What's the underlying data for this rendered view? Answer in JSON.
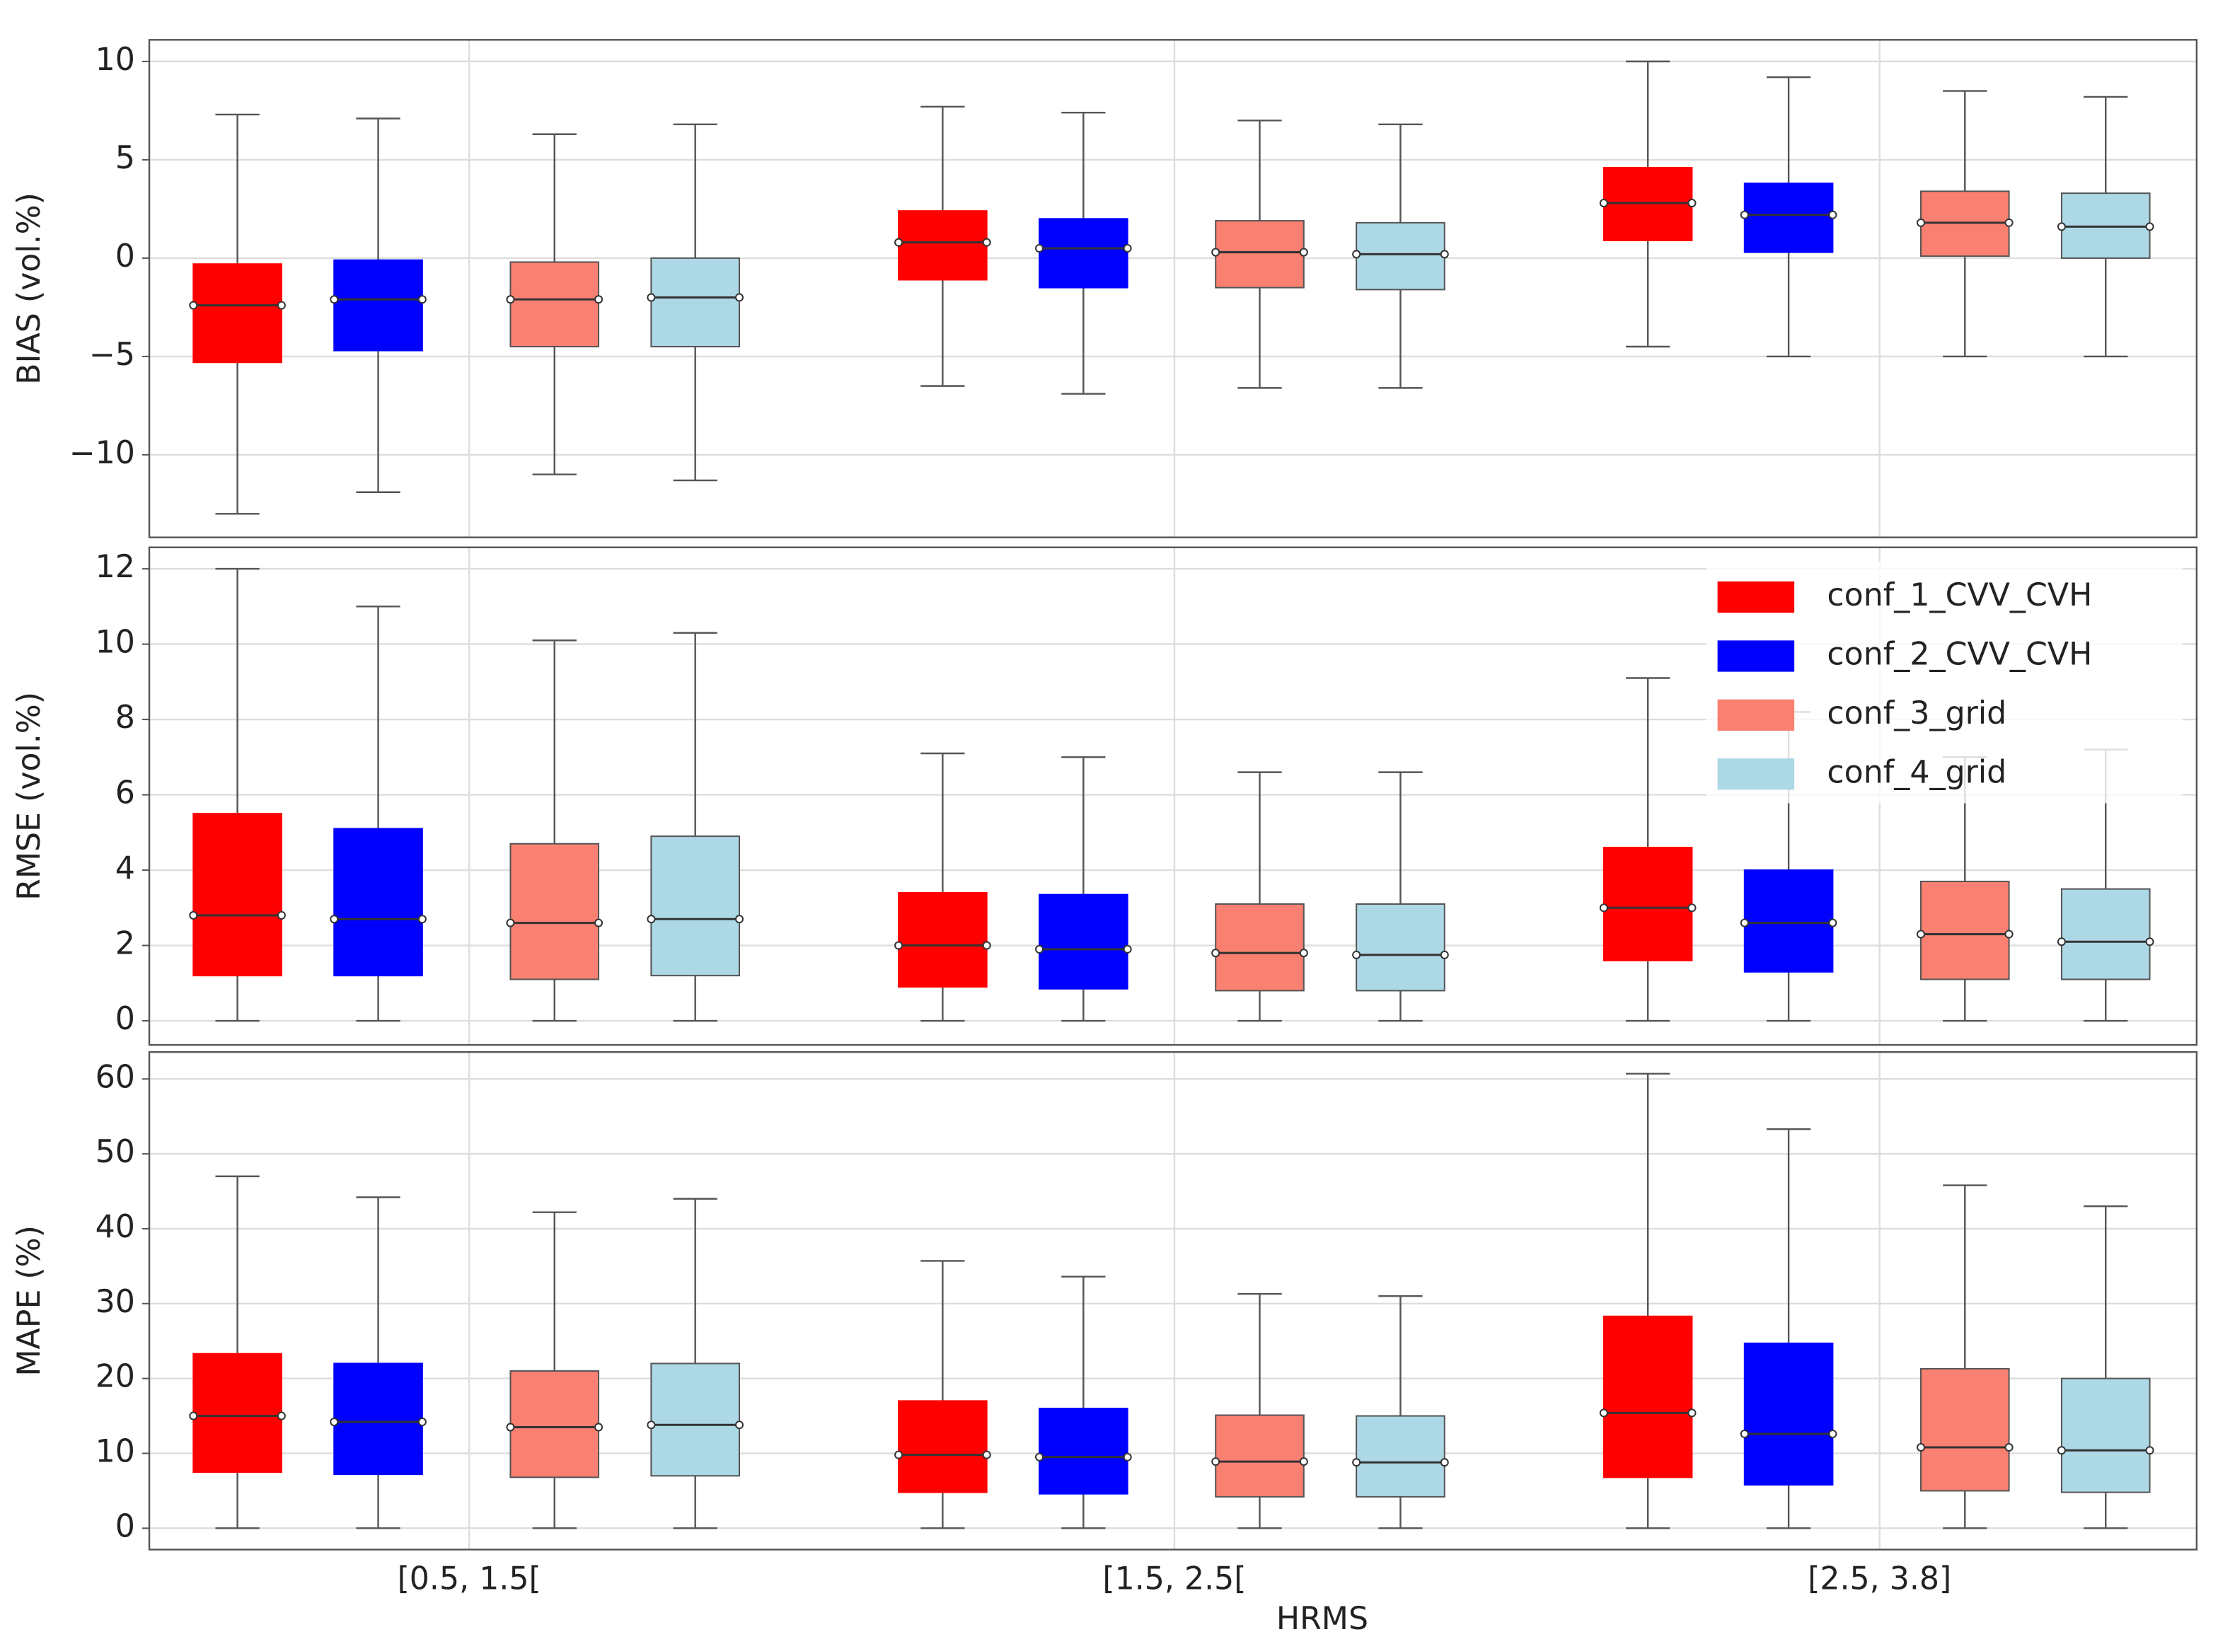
{
  "chart_data": [
    {
      "type": "box",
      "ylabel": "BIAS (vol.%)",
      "ylim": [
        -14.2,
        11.1
      ],
      "grid": true,
      "yticks": [
        {
          "value": -10,
          "label": "−10"
        },
        {
          "value": -5,
          "label": "−5"
        },
        0,
        5,
        10
      ],
      "series": [
        {
          "color": "#ff0000",
          "values": [
            {
              "whislo": -13,
              "q1": -5.3,
              "med": -2.4,
              "q3": -0.3,
              "whishi": 7.3
            },
            {
              "whislo": -6.5,
              "q1": -1.1,
              "med": 0.8,
              "q3": 2.4,
              "whishi": 7.7
            },
            {
              "whislo": -4.5,
              "q1": 0.9,
              "med": 2.8,
              "q3": 4.6,
              "whishi": 10
            }
          ]
        },
        {
          "color": "#0000ff",
          "values": [
            {
              "whislo": -11.9,
              "q1": -4.7,
              "med": -2.1,
              "q3": -0.1,
              "whishi": 7.1
            },
            {
              "whislo": -6.9,
              "q1": -1.5,
              "med": 0.5,
              "q3": 2.0,
              "whishi": 7.4
            },
            {
              "whislo": -5.0,
              "q1": 0.3,
              "med": 2.2,
              "q3": 3.8,
              "whishi": 9.2
            }
          ]
        },
        {
          "color": "#fa8072",
          "values": [
            {
              "whislo": -11,
              "q1": -4.5,
              "med": -2.1,
              "q3": -0.2,
              "whishi": 6.3
            },
            {
              "whislo": -6.6,
              "q1": -1.5,
              "med": 0.3,
              "q3": 1.9,
              "whishi": 7.0
            },
            {
              "whislo": -5.0,
              "q1": 0.1,
              "med": 1.8,
              "q3": 3.4,
              "whishi": 8.5
            }
          ]
        },
        {
          "color": "#add8e6",
          "values": [
            {
              "whislo": -11.3,
              "q1": -4.5,
              "med": -2.0,
              "q3": 0,
              "whishi": 6.8
            },
            {
              "whislo": -6.6,
              "q1": -1.6,
              "med": 0.2,
              "q3": 1.8,
              "whishi": 6.8
            },
            {
              "whislo": -5.0,
              "q1": 0.0,
              "med": 1.6,
              "q3": 3.3,
              "whishi": 8.2
            }
          ]
        }
      ]
    },
    {
      "type": "box",
      "ylabel": "RMSE (vol.%)",
      "ylim": [
        -0.64,
        12.57
      ],
      "grid": true,
      "legend": "upper right",
      "yticks": [
        0,
        2,
        4,
        6,
        8,
        10,
        12
      ],
      "series": [
        {
          "name": "conf_1_CVV_CVH",
          "color": "#ff0000",
          "values": [
            {
              "whislo": 0,
              "q1": 1.2,
              "med": 2.8,
              "q3": 5.5,
              "whishi": 12
            },
            {
              "whislo": 0,
              "q1": 0.9,
              "med": 2.0,
              "q3": 3.4,
              "whishi": 7.1
            },
            {
              "whislo": 0,
              "q1": 1.6,
              "med": 3.0,
              "q3": 4.6,
              "whishi": 9.1
            }
          ]
        },
        {
          "name": "conf_2_CVV_CVH",
          "color": "#0000ff",
          "values": [
            {
              "whislo": 0,
              "q1": 1.2,
              "med": 2.7,
              "q3": 5.1,
              "whishi": 11
            },
            {
              "whislo": 0,
              "q1": 0.85,
              "med": 1.9,
              "q3": 3.35,
              "whishi": 7.0
            },
            {
              "whislo": 0,
              "q1": 1.3,
              "med": 2.6,
              "q3": 4.0,
              "whishi": 8.2
            }
          ]
        },
        {
          "name": "conf_3_grid",
          "color": "#fa8072",
          "values": [
            {
              "whislo": 0,
              "q1": 1.1,
              "med": 2.6,
              "q3": 4.7,
              "whishi": 10.1
            },
            {
              "whislo": 0,
              "q1": 0.8,
              "med": 1.8,
              "q3": 3.1,
              "whishi": 6.6
            },
            {
              "whislo": 0,
              "q1": 1.1,
              "med": 2.3,
              "q3": 3.7,
              "whishi": 7.0
            }
          ]
        },
        {
          "name": "conf_4_grid",
          "color": "#add8e6",
          "values": [
            {
              "whislo": 0,
              "q1": 1.2,
              "med": 2.7,
              "q3": 4.9,
              "whishi": 10.3
            },
            {
              "whislo": 0,
              "q1": 0.8,
              "med": 1.75,
              "q3": 3.1,
              "whishi": 6.6
            },
            {
              "whislo": 0,
              "q1": 1.1,
              "med": 2.1,
              "q3": 3.5,
              "whishi": 7.2
            }
          ]
        }
      ]
    },
    {
      "type": "box",
      "ylabel": "MAPE (%)",
      "ylim": [
        -2.85,
        63.6
      ],
      "grid": true,
      "xlabel": "HRMS",
      "categories": [
        "[0.5, 1.5[",
        "[1.5, 2.5[",
        "[2.5, 3.8]"
      ],
      "yticks": [
        0,
        10,
        20,
        30,
        40,
        50,
        60
      ],
      "series": [
        {
          "color": "#ff0000",
          "values": [
            {
              "whislo": 0,
              "q1": 7.5,
              "med": 15,
              "q3": 23.3,
              "whishi": 47
            },
            {
              "whislo": 0,
              "q1": 4.8,
              "med": 9.8,
              "q3": 17,
              "whishi": 35.7
            },
            {
              "whislo": 0,
              "q1": 6.8,
              "med": 15.4,
              "q3": 28.3,
              "whishi": 60.7
            }
          ]
        },
        {
          "color": "#0000ff",
          "values": [
            {
              "whislo": 0,
              "q1": 7.2,
              "med": 14.2,
              "q3": 22,
              "whishi": 44.2
            },
            {
              "whislo": 0,
              "q1": 4.6,
              "med": 9.5,
              "q3": 16,
              "whishi": 33.6
            },
            {
              "whislo": 0,
              "q1": 5.8,
              "med": 12.6,
              "q3": 24.7,
              "whishi": 53.3
            }
          ]
        },
        {
          "color": "#fa8072",
          "values": [
            {
              "whislo": 0,
              "q1": 6.8,
              "med": 13.5,
              "q3": 21,
              "whishi": 42.2
            },
            {
              "whislo": 0,
              "q1": 4.2,
              "med": 8.9,
              "q3": 15.1,
              "whishi": 31.3
            },
            {
              "whislo": 0,
              "q1": 5,
              "med": 10.8,
              "q3": 21.3,
              "whishi": 45.8
            }
          ]
        },
        {
          "color": "#add8e6",
          "values": [
            {
              "whislo": 0,
              "q1": 7,
              "med": 13.8,
              "q3": 22,
              "whishi": 44
            },
            {
              "whislo": 0,
              "q1": 4.2,
              "med": 8.8,
              "q3": 15,
              "whishi": 31
            },
            {
              "whislo": 0,
              "q1": 4.8,
              "med": 10.4,
              "q3": 20,
              "whishi": 43
            }
          ]
        }
      ]
    }
  ]
}
